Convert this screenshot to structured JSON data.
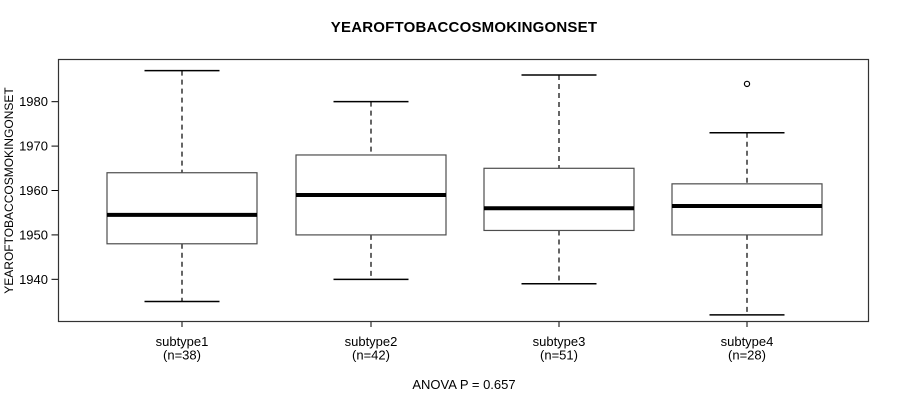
{
  "chart_data": {
    "type": "boxplot",
    "title": "YEAROFTOBACCOSMOKINGONSET",
    "ylabel": "YEAROFTOBACCOSMOKINGONSET",
    "footer": "ANOVA P = 0.657",
    "ylim": [
      1930.5,
      1989.5
    ],
    "yticks": [
      1940,
      1950,
      1960,
      1970,
      1980
    ],
    "categories": [
      "subtype1",
      "subtype2",
      "subtype3",
      "subtype4"
    ],
    "category_counts": [
      "(n=38)",
      "(n=42)",
      "(n=51)",
      "(n=28)"
    ],
    "series": [
      {
        "name": "subtype1",
        "n": 38,
        "whisker_low": 1935,
        "q1": 1948,
        "median": 1954.5,
        "q3": 1964,
        "whisker_high": 1987,
        "outliers": []
      },
      {
        "name": "subtype2",
        "n": 42,
        "whisker_low": 1940,
        "q1": 1950,
        "median": 1959,
        "q3": 1968,
        "whisker_high": 1980,
        "outliers": []
      },
      {
        "name": "subtype3",
        "n": 51,
        "whisker_low": 1939,
        "q1": 1951,
        "median": 1956,
        "q3": 1965,
        "whisker_high": 1986,
        "outliers": []
      },
      {
        "name": "subtype4",
        "n": 28,
        "whisker_low": 1932,
        "q1": 1950,
        "median": 1956.5,
        "q3": 1961.5,
        "whisker_high": 1973,
        "outliers": [
          1984
        ]
      }
    ],
    "layout_hints": {
      "grid": false,
      "legend": "none",
      "whisker_style": "dashed",
      "orientation": "vertical"
    },
    "colors": {
      "background": "#ffffff",
      "box_fill": "#ffffff",
      "box_border": "#4d4d4d",
      "median": "#000000",
      "whisker": "#000000",
      "frame": "#333333",
      "text": "#000000"
    }
  }
}
